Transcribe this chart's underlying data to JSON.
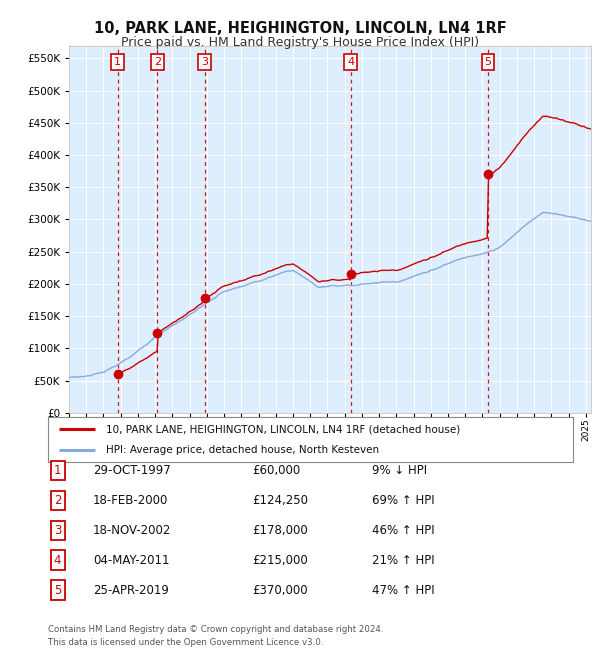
{
  "title": "10, PARK LANE, HEIGHINGTON, LINCOLN, LN4 1RF",
  "subtitle": "Price paid vs. HM Land Registry's House Price Index (HPI)",
  "transactions": [
    {
      "num": 1,
      "date": "29-OCT-1997",
      "year": 1997.83,
      "price": 60000,
      "pct": "9%",
      "dir": "↓"
    },
    {
      "num": 2,
      "date": "18-FEB-2000",
      "year": 2000.13,
      "price": 124250,
      "pct": "69%",
      "dir": "↑"
    },
    {
      "num": 3,
      "date": "18-NOV-2002",
      "year": 2002.88,
      "price": 178000,
      "pct": "46%",
      "dir": "↑"
    },
    {
      "num": 4,
      "date": "04-MAY-2011",
      "year": 2011.34,
      "price": 215000,
      "pct": "21%",
      "dir": "↑"
    },
    {
      "num": 5,
      "date": "25-APR-2019",
      "year": 2019.32,
      "price": 370000,
      "pct": "47%",
      "dir": "↑"
    }
  ],
  "legend_property": "10, PARK LANE, HEIGHINGTON, LINCOLN, LN4 1RF (detached house)",
  "legend_hpi": "HPI: Average price, detached house, North Kesteven",
  "footer": "Contains HM Land Registry data © Crown copyright and database right 2024.\nThis data is licensed under the Open Government Licence v3.0.",
  "ylim": [
    0,
    570000
  ],
  "xlim_start": 1995.0,
  "xlim_end": 2025.3,
  "bg_color": "#ddeeff",
  "grid_color": "#ffffff",
  "property_line_color": "#cc0000",
  "hpi_line_color": "#88aadd",
  "marker_color": "#cc0000",
  "vline_color": "#cc0000",
  "box_edge_color": "#cc0000",
  "title_fontsize": 10.5,
  "subtitle_fontsize": 9
}
